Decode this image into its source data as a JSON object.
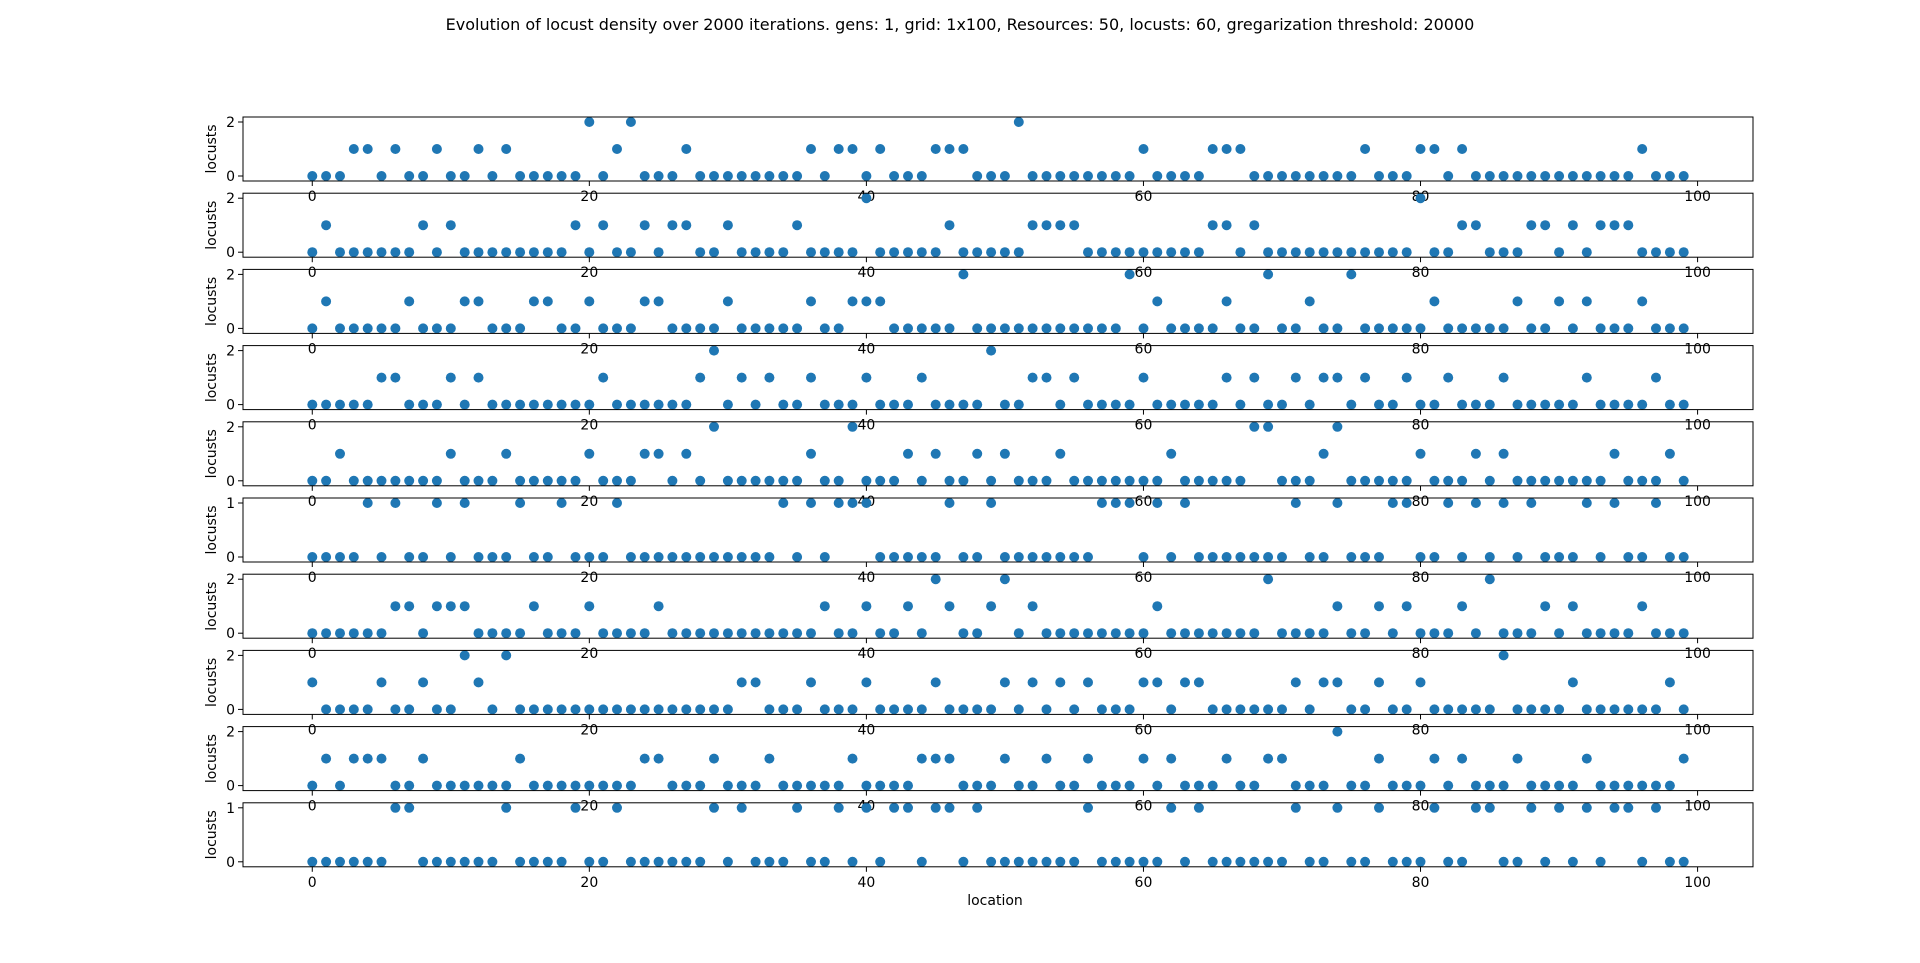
{
  "chart_data": {
    "type": "scatter",
    "title": "Evolution of locust density over 2000 iterations. gens: 1, grid: 1x100, Resources: 50, locusts: 60, gregarization threshold: 20000",
    "xlabel": "location",
    "ylabel": "locusts",
    "xlim": [
      -5,
      104
    ],
    "x_ticks": [
      0,
      20,
      40,
      60,
      80,
      100
    ],
    "marker_color": "#1f77b4",
    "panels": [
      {
        "ymax": 2,
        "y_ticks": [
          0,
          2
        ],
        "values": [
          0,
          0,
          0,
          1,
          1,
          0,
          1,
          0,
          0,
          1,
          0,
          0,
          1,
          0,
          1,
          0,
          0,
          0,
          0,
          0,
          2,
          0,
          1,
          2,
          0,
          0,
          0,
          1,
          0,
          0,
          0,
          0,
          0,
          0,
          0,
          0,
          1,
          0,
          1,
          1,
          0,
          1,
          0,
          0,
          0,
          1,
          1,
          1,
          0,
          0,
          0,
          2,
          0,
          0,
          0,
          0,
          0,
          0,
          0,
          0,
          1,
          0,
          0,
          0,
          0,
          1,
          1,
          1,
          0,
          0,
          0,
          0,
          0,
          0,
          0,
          0,
          1,
          0,
          0,
          0,
          1,
          1,
          0,
          1,
          0,
          0,
          0,
          0,
          0,
          0,
          0,
          0,
          0,
          0,
          0,
          0,
          1,
          0,
          0,
          0
        ]
      },
      {
        "ymax": 2,
        "y_ticks": [
          0,
          2
        ],
        "values": [
          0,
          1,
          0,
          0,
          0,
          0,
          0,
          0,
          1,
          0,
          1,
          0,
          0,
          0,
          0,
          0,
          0,
          0,
          0,
          1,
          0,
          1,
          0,
          0,
          1,
          0,
          1,
          1,
          0,
          0,
          1,
          0,
          0,
          0,
          0,
          1,
          0,
          0,
          0,
          0,
          2,
          0,
          0,
          0,
          0,
          0,
          1,
          0,
          0,
          0,
          0,
          0,
          1,
          1,
          1,
          1,
          0,
          0,
          0,
          0,
          0,
          0,
          0,
          0,
          0,
          1,
          1,
          0,
          1,
          0,
          0,
          0,
          0,
          0,
          0,
          0,
          0,
          0,
          0,
          0,
          2,
          0,
          0,
          1,
          1,
          0,
          0,
          0,
          1,
          1,
          0,
          1,
          0,
          1,
          1,
          1,
          0,
          0,
          0,
          0
        ]
      },
      {
        "ymax": 2,
        "y_ticks": [
          0,
          2
        ],
        "values": [
          0,
          1,
          0,
          0,
          0,
          0,
          0,
          1,
          0,
          0,
          0,
          1,
          1,
          0,
          0,
          0,
          1,
          1,
          0,
          0,
          1,
          0,
          0,
          0,
          1,
          1,
          0,
          0,
          0,
          0,
          1,
          0,
          0,
          0,
          0,
          0,
          1,
          0,
          0,
          1,
          1,
          1,
          0,
          0,
          0,
          0,
          0,
          2,
          0,
          0,
          0,
          0,
          0,
          0,
          0,
          0,
          0,
          0,
          0,
          2,
          0,
          1,
          0,
          0,
          0,
          0,
          1,
          0,
          0,
          2,
          0,
          0,
          1,
          0,
          0,
          2,
          0,
          0,
          0,
          0,
          0,
          1,
          0,
          0,
          0,
          0,
          0,
          1,
          0,
          0,
          1,
          0,
          1,
          0,
          0,
          0,
          1,
          0,
          0,
          0
        ]
      },
      {
        "ymax": 2,
        "y_ticks": [
          0,
          2
        ],
        "values": [
          0,
          0,
          0,
          0,
          0,
          1,
          1,
          0,
          0,
          0,
          1,
          0,
          1,
          0,
          0,
          0,
          0,
          0,
          0,
          0,
          0,
          1,
          0,
          0,
          0,
          0,
          0,
          0,
          1,
          2,
          0,
          1,
          0,
          1,
          0,
          0,
          1,
          0,
          0,
          0,
          1,
          0,
          0,
          0,
          1,
          0,
          0,
          0,
          0,
          2,
          0,
          0,
          1,
          1,
          0,
          1,
          0,
          0,
          0,
          0,
          1,
          0,
          0,
          0,
          0,
          0,
          1,
          0,
          1,
          0,
          0,
          1,
          0,
          1,
          1,
          0,
          1,
          0,
          0,
          1,
          0,
          0,
          1,
          0,
          0,
          0,
          1,
          0,
          0,
          0,
          0,
          0,
          1,
          0,
          0,
          0,
          0,
          1,
          0,
          0
        ]
      },
      {
        "ymax": 2,
        "y_ticks": [
          0,
          2
        ],
        "values": [
          0,
          0,
          1,
          0,
          0,
          0,
          0,
          0,
          0,
          0,
          1,
          0,
          0,
          0,
          1,
          0,
          0,
          0,
          0,
          0,
          1,
          0,
          0,
          0,
          1,
          1,
          0,
          1,
          0,
          2,
          0,
          0,
          0,
          0,
          0,
          0,
          1,
          0,
          0,
          2,
          0,
          0,
          0,
          1,
          0,
          1,
          0,
          0,
          1,
          0,
          1,
          0,
          0,
          0,
          1,
          0,
          0,
          0,
          0,
          0,
          0,
          0,
          1,
          0,
          0,
          0,
          0,
          0,
          2,
          2,
          0,
          0,
          0,
          1,
          2,
          0,
          0,
          0,
          0,
          0,
          1,
          0,
          0,
          0,
          1,
          0,
          1,
          0,
          0,
          0,
          0,
          0,
          0,
          0,
          1,
          0,
          0,
          0,
          1,
          0
        ]
      },
      {
        "ymax": 1,
        "y_ticks": [
          0,
          1
        ],
        "values": [
          0,
          0,
          0,
          0,
          1,
          0,
          1,
          0,
          0,
          1,
          0,
          1,
          0,
          0,
          0,
          1,
          0,
          0,
          1,
          0,
          0,
          0,
          1,
          0,
          0,
          0,
          0,
          0,
          0,
          0,
          0,
          0,
          0,
          0,
          1,
          0,
          1,
          0,
          1,
          1,
          1,
          0,
          0,
          0,
          0,
          0,
          1,
          0,
          0,
          1,
          0,
          0,
          0,
          0,
          0,
          0,
          0,
          1,
          1,
          1,
          0,
          1,
          0,
          1,
          0,
          0,
          0,
          0,
          0,
          0,
          0,
          1,
          0,
          0,
          1,
          0,
          0,
          0,
          1,
          1,
          0,
          0,
          1,
          0,
          1,
          0,
          1,
          0,
          1,
          0,
          0,
          0,
          1,
          0,
          1,
          0,
          0,
          1,
          0,
          0
        ]
      },
      {
        "ymax": 2,
        "y_ticks": [
          0,
          2
        ],
        "values": [
          0,
          0,
          0,
          0,
          0,
          0,
          1,
          1,
          0,
          1,
          1,
          1,
          0,
          0,
          0,
          0,
          1,
          0,
          0,
          0,
          1,
          0,
          0,
          0,
          0,
          1,
          0,
          0,
          0,
          0,
          0,
          0,
          0,
          0,
          0,
          0,
          0,
          1,
          0,
          0,
          1,
          0,
          0,
          1,
          0,
          2,
          1,
          0,
          0,
          1,
          2,
          0,
          1,
          0,
          0,
          0,
          0,
          0,
          0,
          0,
          0,
          1,
          0,
          0,
          0,
          0,
          0,
          0,
          0,
          2,
          0,
          0,
          0,
          0,
          1,
          0,
          0,
          1,
          0,
          1,
          0,
          0,
          0,
          1,
          0,
          2,
          0,
          0,
          0,
          1,
          0,
          1,
          0,
          0,
          0,
          0,
          1,
          0,
          0,
          0
        ]
      },
      {
        "ymax": 2,
        "y_ticks": [
          0,
          2
        ],
        "values": [
          1,
          0,
          0,
          0,
          0,
          1,
          0,
          0,
          1,
          0,
          0,
          2,
          1,
          0,
          2,
          0,
          0,
          0,
          0,
          0,
          0,
          0,
          0,
          0,
          0,
          0,
          0,
          0,
          0,
          0,
          0,
          1,
          1,
          0,
          0,
          0,
          1,
          0,
          0,
          0,
          1,
          0,
          0,
          0,
          0,
          1,
          0,
          0,
          0,
          0,
          1,
          0,
          1,
          0,
          1,
          0,
          1,
          0,
          0,
          0,
          1,
          1,
          0,
          1,
          1,
          0,
          0,
          0,
          0,
          0,
          0,
          1,
          0,
          1,
          1,
          0,
          0,
          1,
          0,
          0,
          1,
          0,
          0,
          0,
          0,
          0,
          2,
          0,
          0,
          0,
          0,
          1,
          0,
          0,
          0,
          0,
          0,
          0,
          1,
          0
        ]
      },
      {
        "ymax": 2,
        "y_ticks": [
          0,
          2
        ],
        "values": [
          0,
          1,
          0,
          1,
          1,
          1,
          0,
          0,
          1,
          0,
          0,
          0,
          0,
          0,
          0,
          1,
          0,
          0,
          0,
          0,
          0,
          0,
          0,
          0,
          1,
          1,
          0,
          0,
          0,
          1,
          0,
          0,
          0,
          1,
          0,
          0,
          0,
          0,
          0,
          1,
          0,
          0,
          0,
          0,
          1,
          1,
          1,
          0,
          0,
          0,
          1,
          0,
          0,
          1,
          0,
          0,
          1,
          0,
          0,
          0,
          1,
          0,
          1,
          0,
          0,
          0,
          1,
          0,
          0,
          1,
          1,
          0,
          0,
          0,
          2,
          0,
          0,
          1,
          0,
          0,
          0,
          1,
          0,
          1,
          0,
          0,
          0,
          1,
          0,
          0,
          0,
          0,
          1,
          0,
          0,
          0,
          0,
          0,
          0,
          1
        ]
      },
      {
        "ymax": 1,
        "y_ticks": [
          0,
          1
        ],
        "values": [
          0,
          0,
          0,
          0,
          0,
          0,
          1,
          1,
          0,
          0,
          0,
          0,
          0,
          0,
          1,
          0,
          0,
          0,
          0,
          1,
          0,
          0,
          1,
          0,
          0,
          0,
          0,
          0,
          0,
          1,
          0,
          1,
          0,
          0,
          0,
          1,
          0,
          0,
          1,
          0,
          1,
          0,
          1,
          1,
          0,
          1,
          1,
          0,
          1,
          0,
          0,
          0,
          0,
          0,
          0,
          0,
          1,
          0,
          0,
          0,
          0,
          0,
          1,
          0,
          1,
          0,
          0,
          0,
          0,
          0,
          0,
          1,
          0,
          0,
          1,
          0,
          0,
          1,
          0,
          0,
          0,
          1,
          0,
          0,
          1,
          1,
          0,
          0,
          1,
          0,
          1,
          0,
          1,
          0,
          1,
          1,
          0,
          1,
          0,
          0
        ]
      }
    ]
  }
}
